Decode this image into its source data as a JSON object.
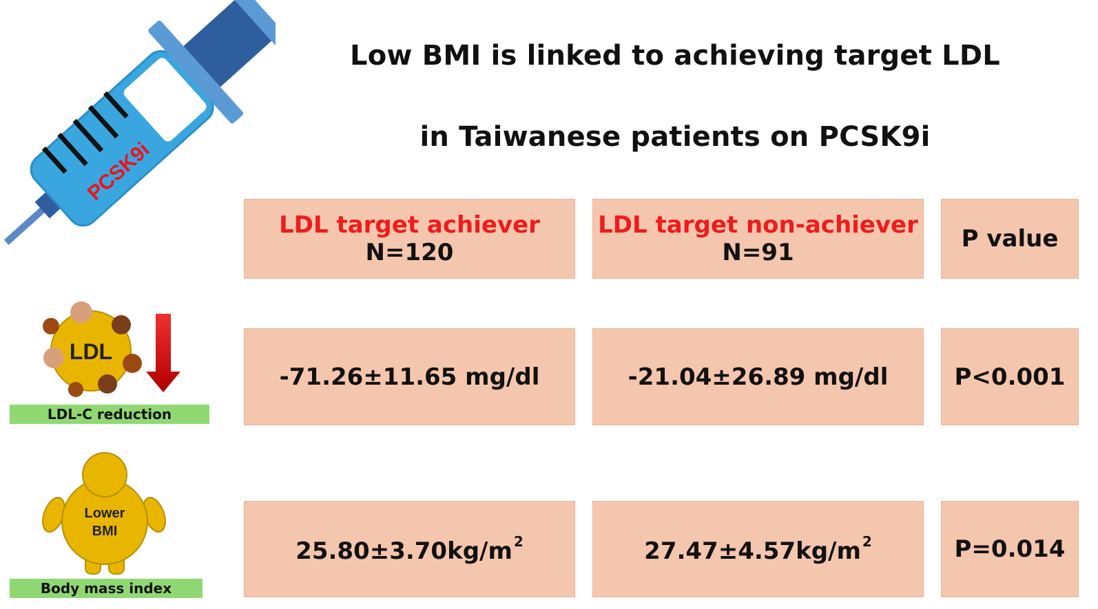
{
  "title": {
    "line1": "Low BMI is linked to achieving target LDL",
    "line2": "in Taiwanese patients on PCSK9i"
  },
  "syringe": {
    "label": "PCSK9i"
  },
  "icons": {
    "ldl_particle_label": "LDL",
    "ldl_caption": "LDL-C reduction",
    "body_label_line1": "Lower",
    "body_label_line2": "BMI",
    "body_caption": "Body mass index"
  },
  "table": {
    "headers": [
      {
        "label": "LDL target achiever",
        "n": "N=120"
      },
      {
        "label": "LDL target non-achiever",
        "n": "N=91"
      },
      {
        "label": "P value"
      }
    ],
    "rows": [
      {
        "name": "LDL-C reduction",
        "achiever": "-71.26±11.65 mg/dl",
        "non_achiever": "-21.04±26.89 mg/dl",
        "p": "P<0.001"
      },
      {
        "name": "Body mass index",
        "achiever": "25.80±3.70kg/m",
        "non_achiever": "27.47±4.57kg/m",
        "unit_sup": "2",
        "p": "P=0.014"
      }
    ]
  },
  "colors": {
    "cell_bg": "#f5c6ae",
    "header_red": "#ee1c1c",
    "caption_green": "#8fd872",
    "syringe_blue": "#3aa6e0",
    "particle_gold": "#e8b600",
    "arrow_red": "#d7191c"
  }
}
